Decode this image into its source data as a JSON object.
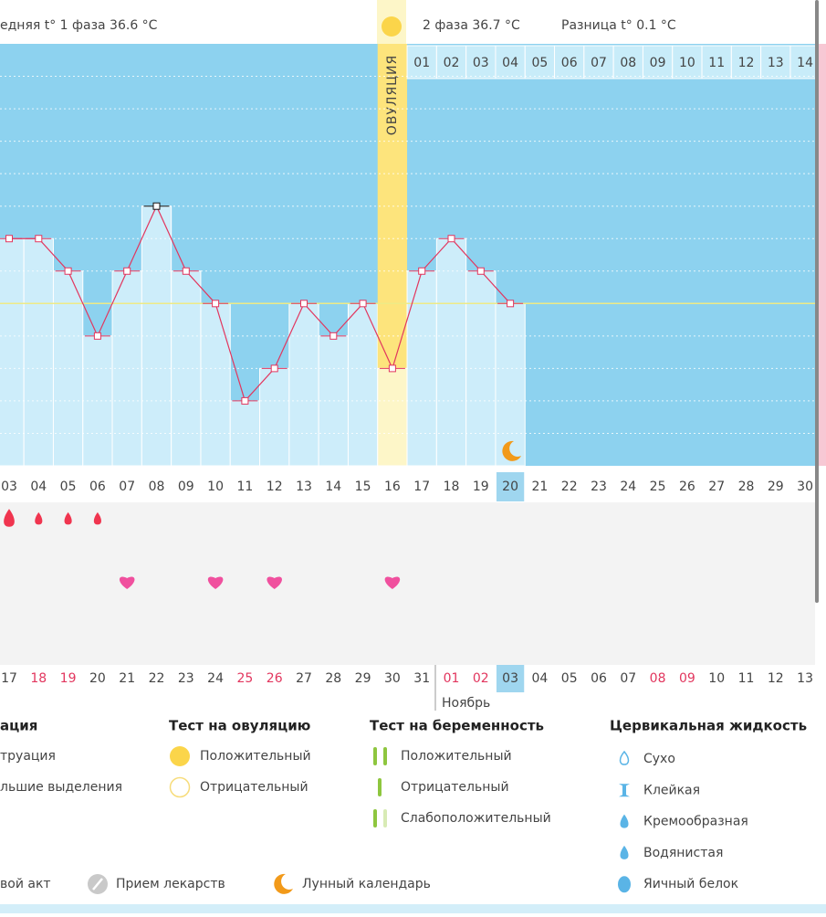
{
  "header": {
    "phase1": "едняя t° 1 фаза 36.6 °C",
    "phase2": "2 фаза 36.7 °C",
    "difference": "Разница t° 0.1 °C"
  },
  "chart_data": {
    "type": "line",
    "categories": [
      "03",
      "04",
      "05",
      "06",
      "07",
      "08",
      "09",
      "10",
      "11",
      "12",
      "13",
      "14",
      "15",
      "16",
      "17",
      "18",
      "19",
      "20",
      "21",
      "22",
      "23",
      "24",
      "25",
      "26",
      "27",
      "28",
      "29",
      "30"
    ],
    "values": [
      36.8,
      36.8,
      36.7,
      36.5,
      36.7,
      36.9,
      36.7,
      36.6,
      36.3,
      36.4,
      36.6,
      36.5,
      36.6,
      36.4,
      36.7,
      36.8,
      36.7,
      36.6,
      null,
      null,
      null,
      null,
      null,
      null,
      null,
      null,
      null,
      null
    ],
    "color": "#e2365e",
    "ylim": [
      36.1,
      37.4
    ],
    "yticks": [
      36.2,
      36.3,
      36.4,
      36.5,
      36.6,
      36.7,
      36.8,
      36.9,
      37.0,
      37.1,
      37.2,
      37.3
    ],
    "grid": true,
    "coverline": 36.6,
    "coverline_color": "#eeea86",
    "ovulation_label": "ОВУЛЯЦИЯ",
    "ovulation_day": "16",
    "today": "20",
    "dpo_labels": [
      "01",
      "02",
      "03",
      "04",
      "05",
      "06",
      "07",
      "08",
      "09",
      "10",
      "11",
      "12",
      "13",
      "14"
    ]
  },
  "calendar": {
    "dates": [
      "17",
      "18",
      "19",
      "20",
      "21",
      "22",
      "23",
      "24",
      "25",
      "26",
      "27",
      "28",
      "29",
      "30",
      "31",
      "01",
      "02",
      "03",
      "04",
      "05",
      "06",
      "07",
      "08",
      "09",
      "10",
      "11",
      "12",
      "13"
    ],
    "holiday": [
      false,
      true,
      true,
      false,
      false,
      false,
      false,
      false,
      true,
      true,
      false,
      false,
      false,
      false,
      false,
      true,
      true,
      false,
      false,
      false,
      false,
      false,
      true,
      true,
      false,
      false,
      false,
      false
    ],
    "month": "Ноябрь"
  },
  "markers": {
    "menstruation": [
      "03",
      "04",
      "05",
      "06"
    ],
    "intercourse": [
      "07",
      "10",
      "12",
      "16"
    ],
    "moon": "20"
  },
  "legend": {
    "menstruation": {
      "title": "ация",
      "items": [
        "труация",
        "льшие выделения"
      ]
    },
    "ovulation_test": {
      "title": "Тест на овуляцию",
      "items": [
        "Положительный",
        "Отрицательный"
      ]
    },
    "pregnancy_test": {
      "title": "Тест на беременность",
      "items": [
        "Положительный",
        "Отрицательный",
        "Слабоположительный"
      ]
    },
    "cervical": {
      "title": "Цервикальная жидкость",
      "items": [
        "Сухо",
        "Клейкая",
        "Кремообразная",
        "Водянистая",
        "Яичный белок"
      ]
    },
    "other": [
      "вой акт",
      "Прием лекарств",
      "Лунный календарь"
    ]
  }
}
